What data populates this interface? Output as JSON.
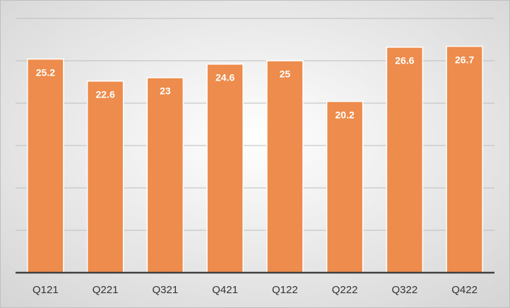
{
  "chart_data": {
    "type": "bar",
    "categories": [
      "Q121",
      "Q221",
      "Q321",
      "Q421",
      "Q122",
      "Q222",
      "Q322",
      "Q422"
    ],
    "values": [
      25.2,
      22.6,
      23,
      24.6,
      25,
      20.2,
      26.6,
      26.7
    ],
    "color": "#ed8c4c",
    "ylim": [
      0,
      30
    ],
    "yticks": [
      0,
      5,
      10,
      15,
      20,
      25,
      30
    ],
    "grid": true
  }
}
